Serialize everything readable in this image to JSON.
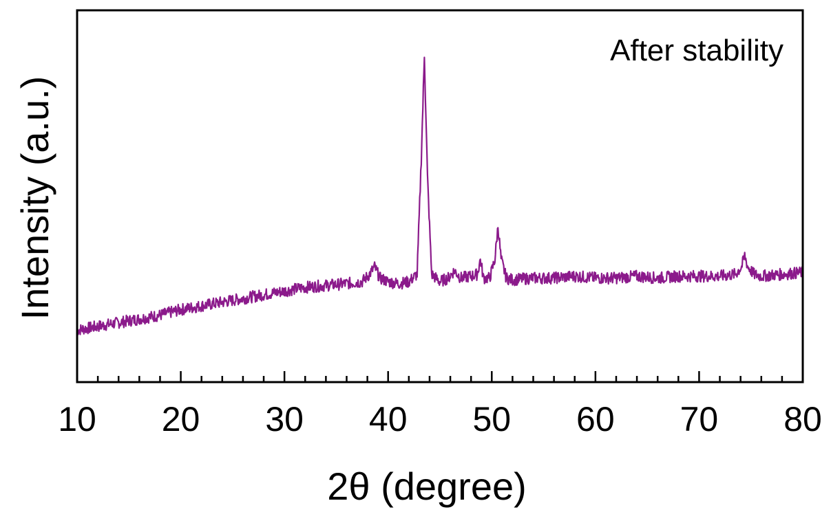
{
  "chart_data": {
    "type": "line",
    "title": "",
    "xlabel": "2θ (degree)",
    "ylabel": "Intensity (a.u.)",
    "xlim": [
      10,
      80
    ],
    "ylim": [
      0,
      100
    ],
    "x_ticks": [
      "10",
      "20",
      "30",
      "40",
      "50",
      "60",
      "70",
      "80"
    ],
    "y_ticks_shown": false,
    "grid": false,
    "legend": "none",
    "annotation": "After stability",
    "line_color": "#8B1A8B",
    "series": [
      {
        "x": [
          10,
          12,
          14,
          16,
          18,
          20,
          22,
          24,
          26,
          28,
          30,
          32,
          34,
          36,
          37.5,
          38.2,
          38.7,
          39.2,
          40,
          41,
          42,
          42.8,
          43.2,
          43.5,
          43.8,
          44.2,
          45,
          45.8,
          46.4,
          47,
          48,
          48.6,
          48.9,
          49.2,
          49.8,
          50.3,
          50.6,
          50.9,
          51.4,
          52,
          54,
          56,
          58,
          60,
          62,
          64,
          66,
          68,
          70,
          72,
          73.5,
          74.1,
          74.4,
          74.7,
          75.3,
          76,
          78,
          80
        ],
        "values": [
          14,
          15,
          16,
          17,
          18,
          19.5,
          20.5,
          21.5,
          22.5,
          23.5,
          24.5,
          25.5,
          26,
          26.5,
          27,
          29,
          31,
          28,
          27,
          26.5,
          27,
          29,
          60,
          88,
          55,
          29,
          27,
          28,
          30,
          28,
          28.5,
          29,
          33,
          28,
          28,
          33,
          42,
          33,
          28,
          27.5,
          28,
          28,
          28.5,
          28,
          28,
          28.5,
          28,
          28.5,
          28.5,
          28.5,
          29,
          31,
          34,
          31,
          29,
          28.5,
          29,
          29.5
        ]
      }
    ]
  }
}
